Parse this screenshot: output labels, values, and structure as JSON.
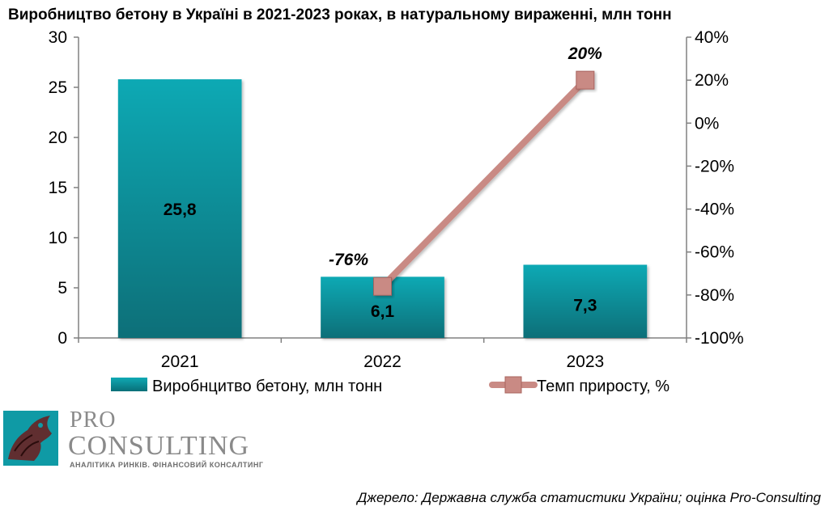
{
  "chart_data": {
    "type": "bar",
    "title": "Виробництво бетону в Україні в 2021-2023 роках, в натуральному вираженні, млн тонн",
    "categories": [
      "2021",
      "2022",
      "2023"
    ],
    "series": [
      {
        "name": "Виробнцитво бетону, млн  тонн",
        "type": "bar",
        "axis": "left",
        "values": [
          25.8,
          6.1,
          7.3
        ],
        "labels": [
          "25,8",
          "6,1",
          "7,3"
        ],
        "color": "#0d9ba6"
      },
      {
        "name": "Темп приросту, %",
        "type": "line",
        "axis": "right",
        "values": [
          null,
          -76,
          20
        ],
        "labels": [
          "",
          "-76%",
          "20%"
        ],
        "color": "#c98a84"
      }
    ],
    "y_left": {
      "min": 0,
      "max": 30,
      "ticks": [
        0,
        5,
        10,
        15,
        20,
        25,
        30
      ],
      "tick_labels": [
        "0",
        "5",
        "10",
        "15",
        "20",
        "25",
        "30"
      ]
    },
    "y_right": {
      "min": -100,
      "max": 40,
      "ticks": [
        -100,
        -80,
        -60,
        -40,
        -20,
        0,
        20,
        40
      ],
      "tick_labels": [
        "-100%",
        "-80%",
        "-60%",
        "-40%",
        "-20%",
        "0%",
        "20%",
        "40%"
      ]
    },
    "grid": false,
    "legend": "bottom"
  },
  "logo": {
    "pro": "PRO",
    "consulting": "CONSULTING",
    "tagline": "АНАЛІТИКА РИНКІВ. ФІНАНСОВИЙ КОНСАЛТИНГ"
  },
  "source": "Джерело: Державна служба статистики України; оцінка Pro-Consulting"
}
